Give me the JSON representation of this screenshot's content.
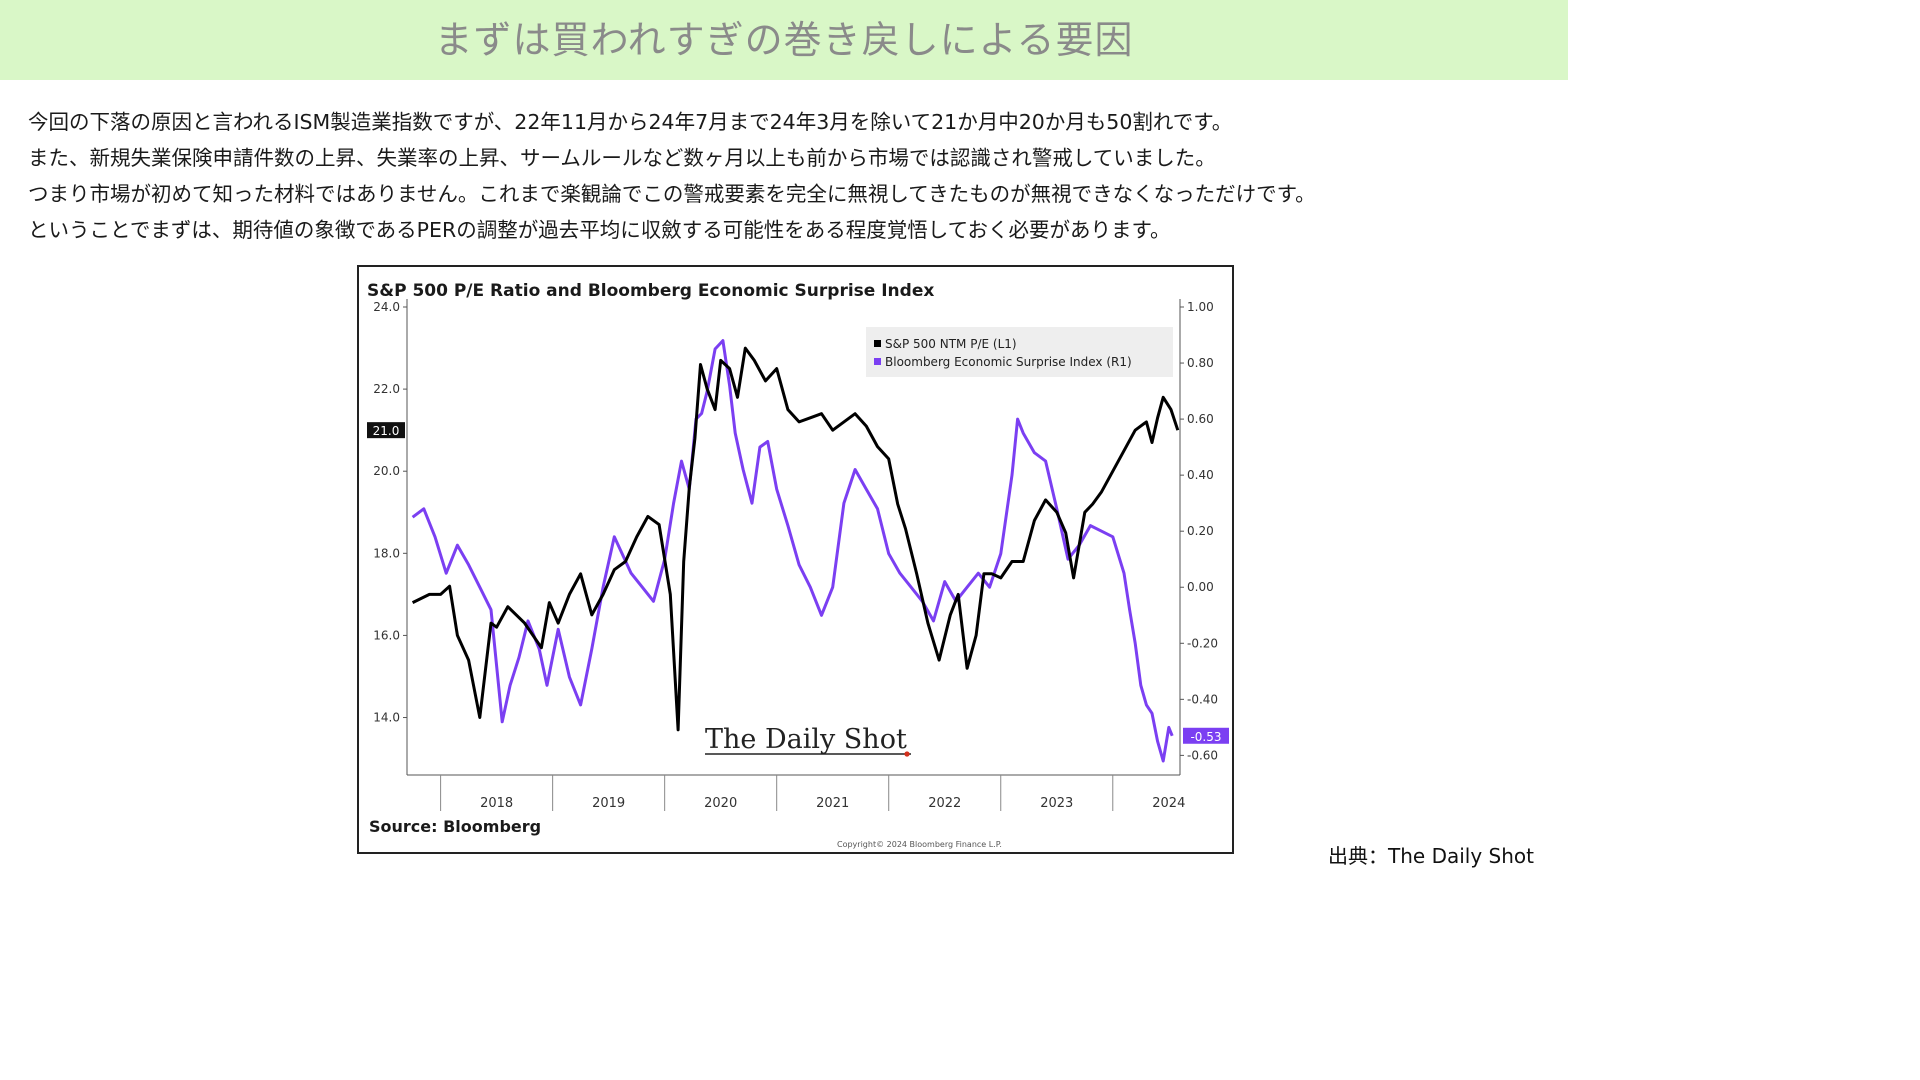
{
  "header": {
    "title": "まずは買われすぎの巻き戻しによる要因"
  },
  "body": {
    "lines": [
      " 今回の下落の原因と言われるISM製造業指数ですが、22年11月から24年7月まで24年3月を除いて21か月中20か月も50割れです。",
      "また、新規失業保険申請件数の上昇、失業率の上昇、サームルールなど数ヶ月以上も前から市場では認識され警戒していました。",
      "つまり市場が初めて知った材料ではありません。これまで楽観論でこの警戒要素を完全に無視してきたものが無視できなくなっただけです。",
      "ということでまずは、期待値の象徴であるPERの調整が過去平均に収斂する可能性をある程度覚悟しておく必要があります。"
    ]
  },
  "caption": "出典：The Daily Shot",
  "chart_data": {
    "type": "line",
    "title": "S&P 500 P/E Ratio and Bloomberg Economic Surprise Index",
    "source": "Source: Bloomberg",
    "copyright": "Copyright© 2024 Bloomberg Finance L.P.",
    "watermark": "The Daily Shot",
    "legend_position": "top-right",
    "x_ticks": [
      "2018",
      "2019",
      "2020",
      "2021",
      "2022",
      "2023",
      "2024"
    ],
    "x_range": [
      2017.7,
      2024.6
    ],
    "y_left": {
      "ticks": [
        "24.0",
        "22.0",
        "20.0",
        "18.0",
        "16.0",
        "14.0"
      ],
      "range": [
        12.6,
        24.0
      ]
    },
    "y_right": {
      "ticks": [
        "1.00",
        "0.80",
        "0.60",
        "0.40",
        "0.20",
        "0.00",
        "-0.20",
        "-0.40",
        "-0.60"
      ],
      "range": [
        -0.67,
        1.0
      ]
    },
    "badges": {
      "left": "21.0",
      "right": "-0.53"
    },
    "colors": {
      "pe": "#000000",
      "esi": "#7b3ff2",
      "badge_left": "#111111",
      "badge_right": "#7b3ff2"
    },
    "series": [
      {
        "name": "S&P 500 NTM P/E (L1)",
        "axis": "left",
        "x": [
          2017.75,
          2017.9,
          2018.0,
          2018.08,
          2018.15,
          2018.25,
          2018.35,
          2018.45,
          2018.5,
          2018.6,
          2018.75,
          2018.9,
          2018.97,
          2019.05,
          2019.15,
          2019.25,
          2019.35,
          2019.45,
          2019.55,
          2019.65,
          2019.75,
          2019.85,
          2019.95,
          2020.05,
          2020.12,
          2020.17,
          2020.22,
          2020.27,
          2020.32,
          2020.38,
          2020.45,
          2020.5,
          2020.58,
          2020.65,
          2020.72,
          2020.8,
          2020.9,
          2021.0,
          2021.1,
          2021.2,
          2021.3,
          2021.4,
          2021.5,
          2021.6,
          2021.7,
          2021.8,
          2021.9,
          2022.0,
          2022.08,
          2022.15,
          2022.25,
          2022.35,
          2022.45,
          2022.55,
          2022.62,
          2022.7,
          2022.78,
          2022.85,
          2022.92,
          2023.0,
          2023.1,
          2023.2,
          2023.3,
          2023.4,
          2023.5,
          2023.58,
          2023.65,
          2023.75,
          2023.82,
          2023.9,
          2024.0,
          2024.1,
          2024.2,
          2024.3,
          2024.35,
          2024.4,
          2024.45,
          2024.52,
          2024.58
        ],
        "values": [
          16.8,
          17.0,
          17.0,
          17.2,
          16.0,
          15.4,
          14.0,
          16.3,
          16.2,
          16.7,
          16.3,
          15.7,
          16.8,
          16.3,
          17.0,
          17.5,
          16.5,
          17.0,
          17.6,
          17.8,
          18.4,
          18.9,
          18.7,
          17.0,
          13.7,
          17.8,
          19.6,
          20.8,
          22.6,
          22.0,
          21.5,
          22.7,
          22.5,
          21.8,
          23.0,
          22.7,
          22.2,
          22.5,
          21.5,
          21.2,
          21.3,
          21.4,
          21.0,
          21.2,
          21.4,
          21.1,
          20.6,
          20.3,
          19.2,
          18.6,
          17.5,
          16.3,
          15.4,
          16.5,
          17.0,
          15.2,
          16.0,
          17.5,
          17.5,
          17.4,
          17.8,
          17.8,
          18.8,
          19.3,
          19.0,
          18.5,
          17.4,
          19.0,
          19.2,
          19.5,
          20.0,
          20.5,
          21.0,
          21.2,
          20.7,
          21.3,
          21.8,
          21.5,
          21.0
        ]
      },
      {
        "name": "Bloomberg Economic Surprise Index (R1)",
        "axis": "right",
        "x": [
          2017.75,
          2017.85,
          2017.95,
          2018.05,
          2018.15,
          2018.25,
          2018.35,
          2018.45,
          2018.55,
          2018.62,
          2018.7,
          2018.78,
          2018.88,
          2018.95,
          2019.05,
          2019.15,
          2019.25,
          2019.35,
          2019.45,
          2019.55,
          2019.62,
          2019.7,
          2019.8,
          2019.9,
          2020.0,
          2020.08,
          2020.15,
          2020.22,
          2020.28,
          2020.33,
          2020.38,
          2020.45,
          2020.52,
          2020.58,
          2020.63,
          2020.7,
          2020.78,
          2020.85,
          2020.92,
          2021.0,
          2021.1,
          2021.2,
          2021.3,
          2021.4,
          2021.5,
          2021.6,
          2021.7,
          2021.8,
          2021.9,
          2022.0,
          2022.1,
          2022.2,
          2022.3,
          2022.4,
          2022.5,
          2022.6,
          2022.7,
          2022.8,
          2022.9,
          2023.0,
          2023.1,
          2023.15,
          2023.2,
          2023.3,
          2023.4,
          2023.5,
          2023.6,
          2023.7,
          2023.8,
          2023.9,
          2024.0,
          2024.1,
          2024.15,
          2024.2,
          2024.25,
          2024.3,
          2024.35,
          2024.4,
          2024.45,
          2024.5,
          2024.53
        ],
        "values": [
          0.25,
          0.28,
          0.18,
          0.05,
          0.15,
          0.08,
          0.0,
          -0.08,
          -0.48,
          -0.35,
          -0.25,
          -0.12,
          -0.22,
          -0.35,
          -0.15,
          -0.32,
          -0.42,
          -0.22,
          0.0,
          0.18,
          0.12,
          0.05,
          0.0,
          -0.05,
          0.1,
          0.3,
          0.45,
          0.35,
          0.6,
          0.62,
          0.7,
          0.85,
          0.88,
          0.72,
          0.55,
          0.42,
          0.3,
          0.5,
          0.52,
          0.35,
          0.22,
          0.08,
          0.0,
          -0.1,
          0.0,
          0.3,
          0.42,
          0.35,
          0.28,
          0.12,
          0.05,
          0.0,
          -0.05,
          -0.12,
          0.02,
          -0.05,
          0.0,
          0.05,
          0.0,
          0.12,
          0.4,
          0.6,
          0.55,
          0.48,
          0.45,
          0.28,
          0.1,
          0.15,
          0.22,
          0.2,
          0.18,
          0.05,
          -0.08,
          -0.2,
          -0.35,
          -0.42,
          -0.45,
          -0.55,
          -0.62,
          -0.5,
          -0.53
        ]
      }
    ]
  }
}
